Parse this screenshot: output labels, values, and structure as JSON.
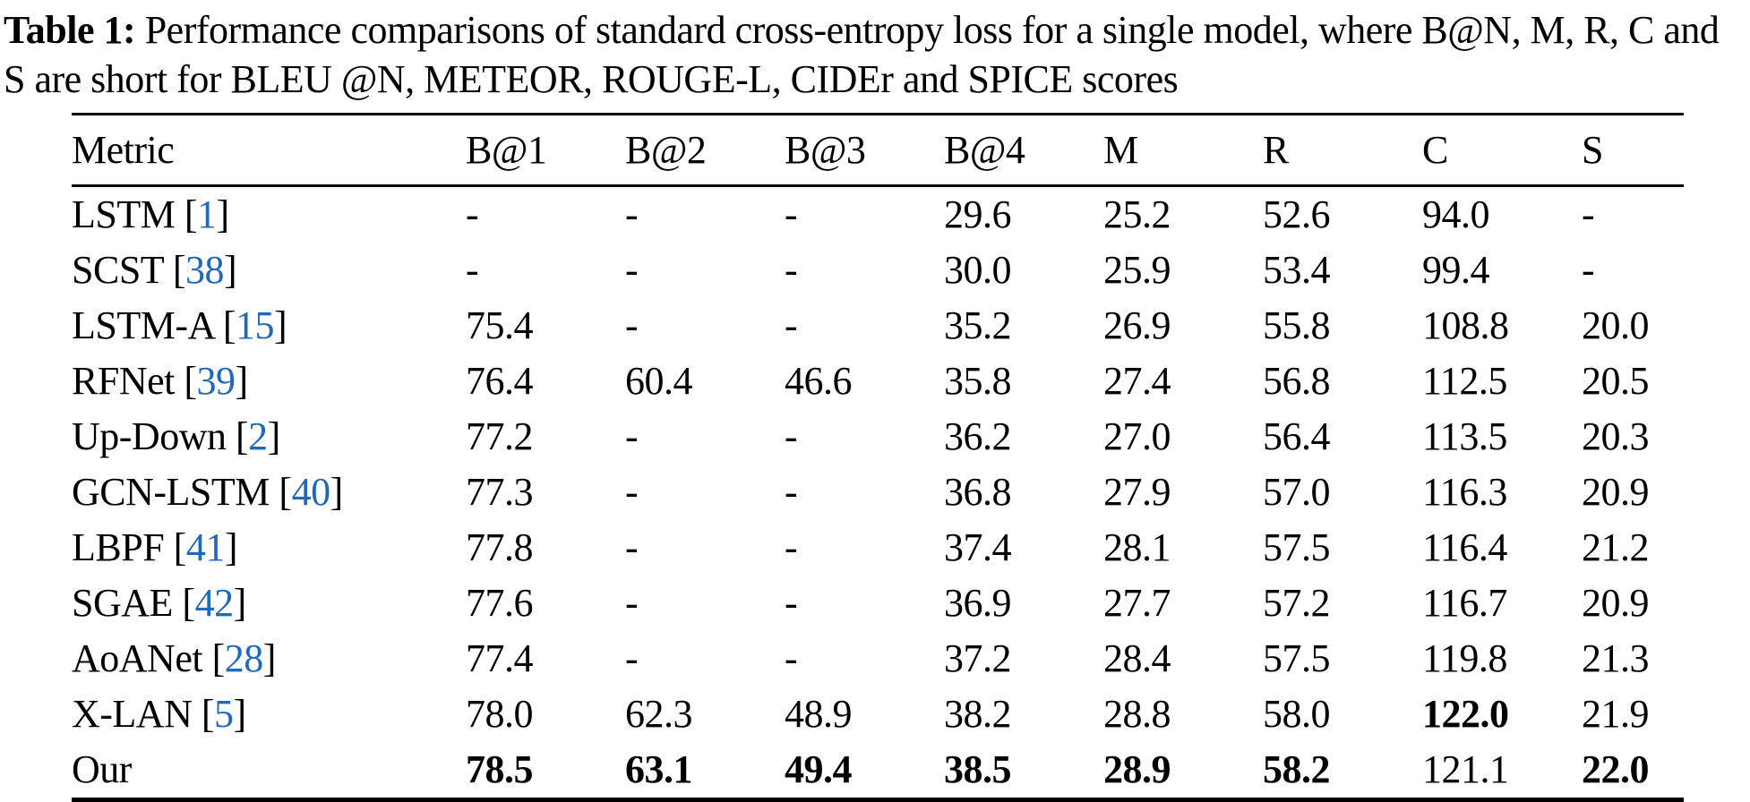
{
  "caption": {
    "label": "Table 1:",
    "text": "Performance comparisons of standard cross-entropy loss for a single model, where B@N, M, R, C and S are short for BLEU @N, METEOR, ROUGE-L, CIDEr and SPICE scores"
  },
  "colors": {
    "text": "#000000",
    "rule": "#000000",
    "citation_blue": "#1e69be"
  },
  "table": {
    "columns": [
      "Metric",
      "B@1",
      "B@2",
      "B@3",
      "B@4",
      "M",
      "R",
      "C",
      "S"
    ],
    "citation_open": "[",
    "citation_close": "]",
    "rows": [
      {
        "name": "LSTM",
        "cite": "1",
        "values": [
          "-",
          "-",
          "-",
          "29.6",
          "25.2",
          "52.6",
          "94.0",
          "-"
        ],
        "bold": []
      },
      {
        "name": "SCST",
        "cite": "38",
        "values": [
          "-",
          "-",
          "-",
          "30.0",
          "25.9",
          "53.4",
          "99.4",
          "-"
        ],
        "bold": []
      },
      {
        "name": "LSTM-A",
        "cite": "15",
        "values": [
          "75.4",
          "-",
          "-",
          "35.2",
          "26.9",
          "55.8",
          "108.8",
          "20.0"
        ],
        "bold": []
      },
      {
        "name": "RFNet",
        "cite": "39",
        "values": [
          "76.4",
          "60.4",
          "46.6",
          "35.8",
          "27.4",
          "56.8",
          "112.5",
          "20.5"
        ],
        "bold": []
      },
      {
        "name": "Up-Down",
        "cite": "2",
        "values": [
          "77.2",
          "-",
          "-",
          "36.2",
          "27.0",
          "56.4",
          "113.5",
          "20.3"
        ],
        "bold": []
      },
      {
        "name": "GCN-LSTM",
        "cite": "40",
        "values": [
          "77.3",
          "-",
          "-",
          "36.8",
          "27.9",
          "57.0",
          "116.3",
          "20.9"
        ],
        "bold": []
      },
      {
        "name": "LBPF",
        "cite": "41",
        "values": [
          "77.8",
          "-",
          "-",
          "37.4",
          "28.1",
          "57.5",
          "116.4",
          "21.2"
        ],
        "bold": []
      },
      {
        "name": "SGAE",
        "cite": "42",
        "values": [
          "77.6",
          "-",
          "-",
          "36.9",
          "27.7",
          "57.2",
          "116.7",
          "20.9"
        ],
        "bold": []
      },
      {
        "name": "AoANet",
        "cite": "28",
        "values": [
          "77.4",
          "-",
          "-",
          "37.2",
          "28.4",
          "57.5",
          "119.8",
          "21.3"
        ],
        "bold": []
      },
      {
        "name": "X-LAN",
        "cite": "5",
        "values": [
          "78.0",
          "62.3",
          "48.9",
          "38.2",
          "28.8",
          "58.0",
          "122.0",
          "21.9"
        ],
        "bold": [
          6
        ]
      },
      {
        "name": "Our",
        "cite": null,
        "values": [
          "78.5",
          "63.1",
          "49.4",
          "38.5",
          "28.9",
          "58.2",
          "121.1",
          "22.0"
        ],
        "bold": [
          0,
          1,
          2,
          3,
          4,
          5,
          7
        ]
      }
    ]
  }
}
